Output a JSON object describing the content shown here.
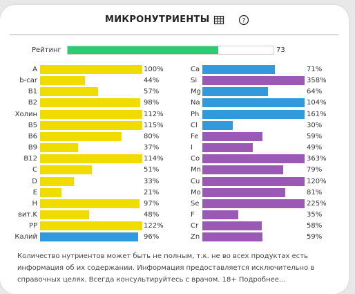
{
  "header": {
    "title": "МИКРОНУТРИЕНТЫ",
    "table_icon": "table-icon",
    "help_icon": "help-icon"
  },
  "rating": {
    "label": "Рейтинг",
    "value": "73",
    "fraction": 0.73,
    "color": "#2ecc71"
  },
  "colors": {
    "yellow": "#f1dc00",
    "blue": "#3399dd",
    "purple": "#9b59b6"
  },
  "left_items": [
    {
      "label": "A",
      "pct": "100%",
      "value": 100,
      "color": "yellow"
    },
    {
      "label": "b-car",
      "pct": "44%",
      "value": 44,
      "color": "yellow"
    },
    {
      "label": "B1",
      "pct": "57%",
      "value": 57,
      "color": "yellow"
    },
    {
      "label": "B2",
      "pct": "98%",
      "value": 98,
      "color": "yellow"
    },
    {
      "label": "Холин",
      "pct": "112%",
      "value": 112,
      "color": "yellow"
    },
    {
      "label": "B5",
      "pct": "115%",
      "value": 115,
      "color": "yellow"
    },
    {
      "label": "B6",
      "pct": "80%",
      "value": 80,
      "color": "yellow"
    },
    {
      "label": "B9",
      "pct": "37%",
      "value": 37,
      "color": "yellow"
    },
    {
      "label": "B12",
      "pct": "114%",
      "value": 114,
      "color": "yellow"
    },
    {
      "label": "C",
      "pct": "51%",
      "value": 51,
      "color": "yellow"
    },
    {
      "label": "D",
      "pct": "33%",
      "value": 33,
      "color": "yellow"
    },
    {
      "label": "E",
      "pct": "21%",
      "value": 21,
      "color": "yellow"
    },
    {
      "label": "H",
      "pct": "97%",
      "value": 97,
      "color": "yellow"
    },
    {
      "label": "вит.K",
      "pct": "48%",
      "value": 48,
      "color": "yellow"
    },
    {
      "label": "PP",
      "pct": "122%",
      "value": 122,
      "color": "yellow"
    },
    {
      "label": "Калий",
      "pct": "96%",
      "value": 96,
      "color": "blue"
    }
  ],
  "right_items": [
    {
      "label": "Ca",
      "pct": "71%",
      "value": 71,
      "color": "blue"
    },
    {
      "label": "Si",
      "pct": "358%",
      "value": 358,
      "color": "purple"
    },
    {
      "label": "Mg",
      "pct": "64%",
      "value": 64,
      "color": "blue"
    },
    {
      "label": "Na",
      "pct": "104%",
      "value": 104,
      "color": "blue"
    },
    {
      "label": "Ph",
      "pct": "161%",
      "value": 161,
      "color": "blue"
    },
    {
      "label": "Cl",
      "pct": "30%",
      "value": 30,
      "color": "blue"
    },
    {
      "label": "Fe",
      "pct": "59%",
      "value": 59,
      "color": "purple"
    },
    {
      "label": "I",
      "pct": "49%",
      "value": 49,
      "color": "purple"
    },
    {
      "label": "Co",
      "pct": "363%",
      "value": 363,
      "color": "purple"
    },
    {
      "label": "Mn",
      "pct": "79%",
      "value": 79,
      "color": "purple"
    },
    {
      "label": "Cu",
      "pct": "120%",
      "value": 120,
      "color": "purple"
    },
    {
      "label": "Mo",
      "pct": "81%",
      "value": 81,
      "color": "purple"
    },
    {
      "label": "Se",
      "pct": "225%",
      "value": 225,
      "color": "purple"
    },
    {
      "label": "F",
      "pct": "35%",
      "value": 35,
      "color": "purple"
    },
    {
      "label": "Cr",
      "pct": "58%",
      "value": 58,
      "color": "purple"
    },
    {
      "label": "Zn",
      "pct": "59%",
      "value": 59,
      "color": "purple"
    }
  ],
  "note": "Количество нутриентов может быть не полным, т.к. не во всех продуктах есть информация об их содержании. Информация предоставляется исключительно в справочных целях. Всегда консультируйтесь с врачом. 18+ Подробнее..."
}
